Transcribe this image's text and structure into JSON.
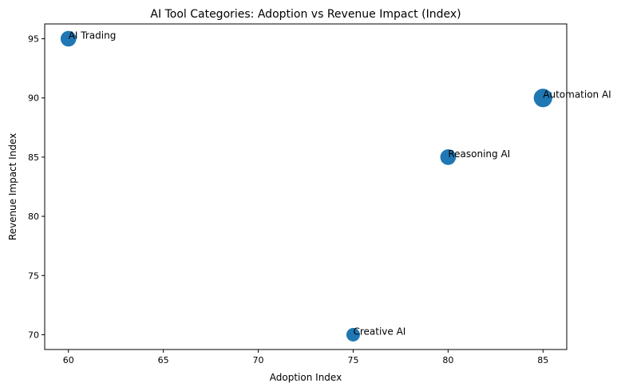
{
  "chart_data": {
    "type": "scatter",
    "title": "AI Tool Categories: Adoption vs Revenue Impact (Index)",
    "x_label": "Adoption Index",
    "y_label": "Revenue Impact Index",
    "color": "#1f77b4",
    "series": [
      {
        "labels": [
          "Automation AI",
          "Reasoning AI",
          "Creative AI",
          "AI Trading"
        ],
        "x": [
          85,
          80,
          75,
          60
        ],
        "values": [
          90,
          85,
          70,
          95
        ],
        "sizes": [
          280,
          200,
          150,
          200
        ]
      }
    ],
    "xlim": [
      58.75,
      86.25
    ],
    "ylim": [
      68.75,
      96.25
    ],
    "xticks": [
      60,
      65,
      70,
      75,
      80,
      85
    ],
    "yticks": [
      70,
      75,
      80,
      85,
      90,
      95
    ],
    "grid": false
  }
}
